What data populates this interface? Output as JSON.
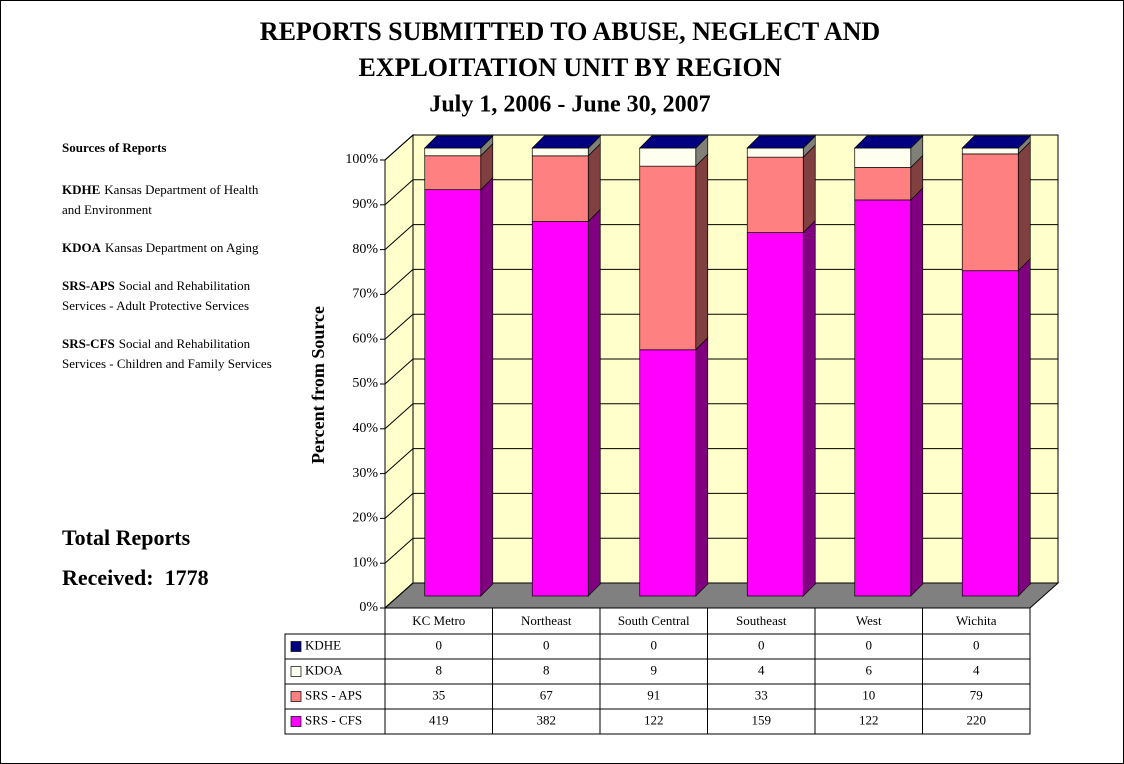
{
  "chart_data": {
    "type": "stacked100_bar_3d",
    "title": [
      "REPORTS SUBMITTED TO ABUSE, NEGLECT AND",
      "EXPLOITATION UNIT BY REGION"
    ],
    "subtitle": "July 1, 2006 - June 30, 2007",
    "y_label": "Percent from Source",
    "categories": [
      "KC Metro",
      "Northeast",
      "South Central",
      "Southeast",
      "West",
      "Wichita"
    ],
    "series": [
      {
        "name": "KDHE",
        "color": "#000080",
        "values": [
          0,
          0,
          0,
          0,
          0,
          0
        ]
      },
      {
        "name": "KDOA",
        "color": "#fffff0",
        "values": [
          8,
          8,
          9,
          4,
          6,
          4
        ]
      },
      {
        "name": "SRS - APS",
        "color": "#ff8080",
        "values": [
          35,
          67,
          91,
          33,
          10,
          79
        ]
      },
      {
        "name": "SRS - CFS",
        "color": "#ff00ff",
        "values": [
          419,
          382,
          122,
          159,
          122,
          220
        ]
      }
    ],
    "ylim": [
      0,
      100
    ],
    "yticks": [
      {
        "value": 0,
        "label": "0%"
      },
      {
        "value": 10,
        "label": "10%"
      },
      {
        "value": 20,
        "label": "20%"
      },
      {
        "value": 30,
        "label": "30%"
      },
      {
        "value": 40,
        "label": "40%"
      },
      {
        "value": 50,
        "label": "50%"
      },
      {
        "value": 60,
        "label": "60%"
      },
      {
        "value": 70,
        "label": "70%"
      },
      {
        "value": 80,
        "label": "80%"
      },
      {
        "value": 90,
        "label": "90%"
      },
      {
        "value": 100,
        "label": "100%"
      }
    ],
    "grid": true,
    "sources_heading": "Sources of Reports",
    "sources": [
      {
        "abbr": "KDHE",
        "text": "Kansas Department of Health and Environment"
      },
      {
        "abbr": "KDOA",
        "text": "Kansas Department on Aging"
      },
      {
        "abbr": "SRS-APS",
        "text": "Social and Rehabilitation Services - Adult Protective Services"
      },
      {
        "abbr": "SRS-CFS",
        "text": "Social and Rehabilitation Services - Children and Family Services"
      }
    ],
    "total_label": "Total Reports Received:",
    "total": 1778
  }
}
